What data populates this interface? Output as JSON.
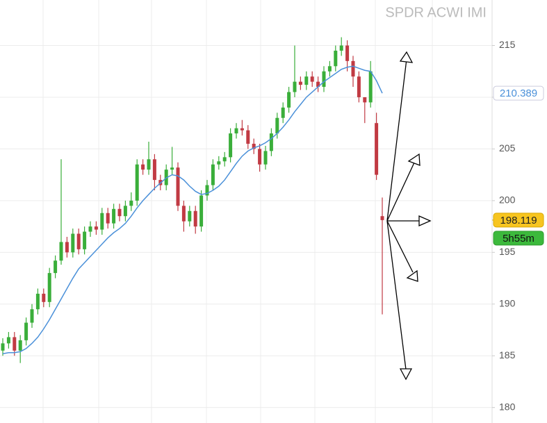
{
  "chart_data": {
    "type": "candlestick",
    "title": "SPDR ACWI IMI",
    "countdown": "5h55m",
    "up_color": "#3aae3a",
    "down_color": "#c13a43",
    "open": [
      185.5,
      186.2,
      186.8,
      185.5,
      186.5,
      188.2,
      189.5,
      191.0,
      190.2,
      193.0,
      194.2,
      196.0,
      195.0,
      196.8,
      195.3,
      197.0,
      197.5,
      197.2,
      198.8,
      197.8,
      199.2,
      198.5,
      199.5,
      200.0,
      203.5,
      203.0,
      204.0,
      202.0,
      201.5,
      203.0,
      203.2,
      199.5,
      198.0,
      199.0,
      197.5,
      200.5,
      201.5,
      203.5,
      203.8,
      204.2,
      206.5,
      207.0,
      206.8,
      205.5,
      205.0,
      203.5,
      204.8,
      206.5,
      208.0,
      209.0,
      210.5,
      211.5,
      211.2,
      212.0,
      211.5,
      211.0,
      212.5,
      213.0,
      214.5,
      215.0,
      213.5,
      212.0,
      210.0,
      209.5,
      207.5,
      198.5
    ],
    "high": [
      186.7,
      187.3,
      187.3,
      187.0,
      188.7,
      190.0,
      191.5,
      191.5,
      193.5,
      194.7,
      204.0,
      196.5,
      197.3,
      197.3,
      197.5,
      198.0,
      198.0,
      199.3,
      199.3,
      199.7,
      199.7,
      200.0,
      200.8,
      204.0,
      204.0,
      205.7,
      204.5,
      202.5,
      203.5,
      205.2,
      203.7,
      200.0,
      199.5,
      199.5,
      201.0,
      202.0,
      204.0,
      204.3,
      204.7,
      207.0,
      207.5,
      207.8,
      207.3,
      206.0,
      205.5,
      205.3,
      207.0,
      208.5,
      209.5,
      211.0,
      215.0,
      212.0,
      212.5,
      212.5,
      212.0,
      213.0,
      213.5,
      215.0,
      215.8,
      215.5,
      214.0,
      212.5,
      210.0,
      213.5,
      208.5,
      200.3
    ],
    "low": [
      185.0,
      185.7,
      185.0,
      184.3,
      186.0,
      187.7,
      189.0,
      189.7,
      189.7,
      192.5,
      193.8,
      194.5,
      194.5,
      194.8,
      194.8,
      196.5,
      196.7,
      196.7,
      197.3,
      197.3,
      198.0,
      198.0,
      199.0,
      199.5,
      202.5,
      202.5,
      201.0,
      201.0,
      201.0,
      202.5,
      199.0,
      197.0,
      197.5,
      196.8,
      197.0,
      200.0,
      201.0,
      203.0,
      203.3,
      203.7,
      206.0,
      206.3,
      205.0,
      204.5,
      202.8,
      203.0,
      204.3,
      206.0,
      207.5,
      208.5,
      210.0,
      210.7,
      210.7,
      211.0,
      210.5,
      210.5,
      212.0,
      212.5,
      214.0,
      212.5,
      211.0,
      209.5,
      207.5,
      209.0,
      202.0,
      189.0
    ],
    "close": [
      186.2,
      186.8,
      185.5,
      186.5,
      188.2,
      189.5,
      191.0,
      190.2,
      193.0,
      194.2,
      196.0,
      195.0,
      196.8,
      195.3,
      197.0,
      197.5,
      197.2,
      198.8,
      197.8,
      199.2,
      198.5,
      199.5,
      200.0,
      203.5,
      203.0,
      204.0,
      202.0,
      201.5,
      203.0,
      203.2,
      199.5,
      198.0,
      199.0,
      197.5,
      200.5,
      201.5,
      203.5,
      203.8,
      204.2,
      206.5,
      207.0,
      206.8,
      205.5,
      205.0,
      203.5,
      204.8,
      206.5,
      208.0,
      209.0,
      210.5,
      211.5,
      211.2,
      212.0,
      211.5,
      211.0,
      212.5,
      213.0,
      214.5,
      215.0,
      213.5,
      212.0,
      210.0,
      209.5,
      212.5,
      202.5,
      198.119
    ],
    "ma": {
      "color": "#4a90d9",
      "values": [
        185.2,
        185.3,
        185.3,
        185.4,
        185.7,
        186.2,
        186.8,
        187.6,
        188.5,
        189.5,
        190.5,
        191.5,
        192.5,
        193.4,
        194.0,
        194.6,
        195.2,
        195.8,
        196.4,
        196.9,
        197.3,
        197.8,
        198.5,
        199.3,
        200.0,
        200.6,
        201.2,
        201.7,
        202.2,
        202.5,
        202.4,
        202.0,
        201.4,
        200.9,
        200.6,
        200.7,
        201.0,
        201.4,
        202.0,
        202.8,
        203.6,
        204.3,
        204.8,
        205.1,
        205.3,
        205.6,
        206.0,
        206.5,
        207.1,
        207.8,
        208.6,
        209.3,
        210.0,
        210.5,
        211.0,
        211.5,
        211.9,
        212.3,
        212.7,
        212.9,
        213.0,
        212.8,
        212.6,
        212.5,
        211.6,
        210.389
      ]
    },
    "ylim": [
      178.5,
      219.4
    ],
    "yticks": [
      180,
      185,
      190,
      195,
      200,
      205,
      210,
      215
    ],
    "grid": true
  }
}
